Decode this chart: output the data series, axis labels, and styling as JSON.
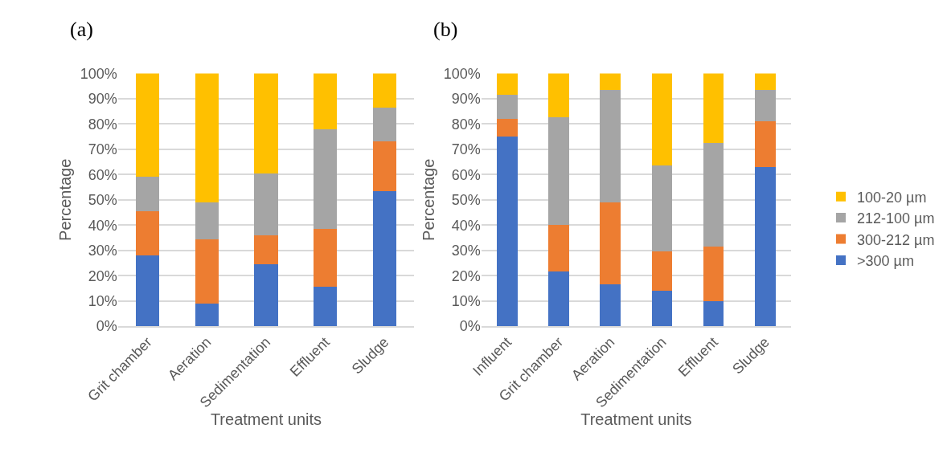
{
  "chart_data": [
    {
      "type": "bar",
      "title": "(a)",
      "xlabel": "Treatment units",
      "ylabel": "Percentage",
      "stacked": true,
      "grid": "y",
      "legend": false,
      "categories": [
        "Grit chamber",
        "Aeration",
        "Sedimentation",
        "Effluent",
        "Sludge"
      ],
      "ylim": [
        0,
        100
      ],
      "yticks": [
        {
          "value": 0,
          "label": "0%"
        },
        {
          "value": 10,
          "label": "10%"
        },
        {
          "value": 20,
          "label": "20%"
        },
        {
          "value": 30,
          "label": "30%"
        },
        {
          "value": 40,
          "label": "40%"
        },
        {
          "value": 50,
          "label": "50%"
        },
        {
          "value": 60,
          "label": "60%"
        },
        {
          "value": 70,
          "label": "70%"
        },
        {
          "value": 80,
          "label": "80%"
        },
        {
          "value": 90,
          "label": "90%"
        },
        {
          "value": 100,
          "label": "100%"
        }
      ],
      "series": [
        {
          "color": "#4472c4",
          "values": [
            28,
            9,
            24.5,
            15.5,
            53.5
          ]
        },
        {
          "color": "#ed7d31",
          "values": [
            17.5,
            25.5,
            11.5,
            23,
            19.5
          ]
        },
        {
          "color": "#a5a5a5",
          "values": [
            13.5,
            14.5,
            24.5,
            39.5,
            13.5
          ]
        },
        {
          "color": "#ffc000",
          "values": [
            41,
            51,
            39.5,
            22,
            13.5
          ]
        }
      ]
    },
    {
      "type": "bar",
      "title": "(b)",
      "xlabel": "Treatment units",
      "ylabel": "Percentage",
      "stacked": true,
      "grid": "y",
      "legend": "right",
      "categories": [
        "Influent",
        "Grit chamber",
        "Aeration",
        "Sedimentation",
        "Effluent",
        "Sludge"
      ],
      "ylim": [
        0,
        100
      ],
      "yticks": [
        {
          "value": 0,
          "label": "0%"
        },
        {
          "value": 10,
          "label": "10%"
        },
        {
          "value": 20,
          "label": "20%"
        },
        {
          "value": 30,
          "label": "30%"
        },
        {
          "value": 40,
          "label": "40%"
        },
        {
          "value": 50,
          "label": "50%"
        },
        {
          "value": 60,
          "label": "60%"
        },
        {
          "value": 70,
          "label": "70%"
        },
        {
          "value": 80,
          "label": "80%"
        },
        {
          "value": 90,
          "label": "90%"
        },
        {
          "value": 100,
          "label": "100%"
        }
      ],
      "series": [
        {
          "name": ">300 µm",
          "color": "#4472c4",
          "values": [
            75,
            21.5,
            16.5,
            14,
            10,
            63
          ]
        },
        {
          "name": "300-212 µm",
          "color": "#ed7d31",
          "values": [
            7,
            18.5,
            32.5,
            15.5,
            21.5,
            18
          ]
        },
        {
          "name": "212-100 µm",
          "color": "#a5a5a5",
          "values": [
            9.5,
            42.5,
            44.5,
            34,
            41,
            12.5
          ]
        },
        {
          "name": "100-20 µm",
          "color": "#ffc000",
          "values": [
            8.5,
            17.5,
            6.5,
            36.5,
            27.5,
            6.5
          ]
        }
      ]
    }
  ]
}
